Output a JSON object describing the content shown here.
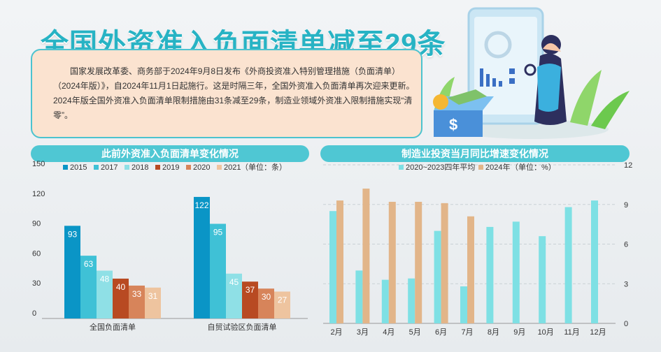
{
  "title": "全国外资准入负面清单减至29条",
  "intro": "国家发展改革委、商务部于2024年9月8日发布《外商投资准入特别管理措施（负面清单）（2024年版）》，自2024年11月1日起施行。这是时隔三年，全国外资准入负面清单再次迎来更新。2024年版全国外资准入负面清单限制措施由31条减至29条，制造业领域外资准入限制措施实现“清零”。",
  "colors": {
    "c2015": "#0a95c6",
    "c2017": "#3fc1d6",
    "c2018": "#8fe0e6",
    "c2019": "#b84a22",
    "c2020": "#d7845a",
    "c2021": "#eec49f",
    "avg": "#7ee0e4",
    "y2024": "#e2b589"
  },
  "chart_data": [
    {
      "type": "bar",
      "title": "此前外资准入负面清单变化情况",
      "unit_label": "（单位：条）",
      "categories": [
        "全国负面清单",
        "自贸试验区负面清单"
      ],
      "series": [
        {
          "name": "2015",
          "values": [
            93,
            122
          ]
        },
        {
          "name": "2017",
          "values": [
            63,
            95
          ]
        },
        {
          "name": "2018",
          "values": [
            48,
            45
          ]
        },
        {
          "name": "2019",
          "values": [
            40,
            37
          ]
        },
        {
          "name": "2020",
          "values": [
            33,
            30
          ]
        },
        {
          "name": "2021",
          "values": [
            31,
            27
          ]
        }
      ],
      "y_ticks": [
        "0",
        "30",
        "60",
        "90",
        "120",
        "150"
      ],
      "ylim": [
        0,
        150
      ],
      "legend": "top"
    },
    {
      "type": "bar",
      "title": "制造业投资当月同比增速变化情况",
      "unit_label": "（单位：%）",
      "categories": [
        "2月",
        "3月",
        "4月",
        "5月",
        "6月",
        "7月",
        "8月",
        "9月",
        "10月",
        "11月",
        "12月"
      ],
      "series": [
        {
          "name": "2020~2023四年平均",
          "values": [
            8.5,
            4.0,
            3.3,
            3.4,
            7.0,
            2.8,
            7.3,
            7.7,
            6.6,
            8.8,
            9.3
          ]
        },
        {
          "name": "2024年",
          "values": [
            9.3,
            10.2,
            9.2,
            9.2,
            9.1,
            8.1,
            null,
            null,
            null,
            null,
            null
          ]
        }
      ],
      "y_ticks": [
        "0",
        "3",
        "6",
        "9",
        "12"
      ],
      "ylim": [
        0,
        12
      ],
      "grid": true,
      "legend": "top"
    }
  ]
}
